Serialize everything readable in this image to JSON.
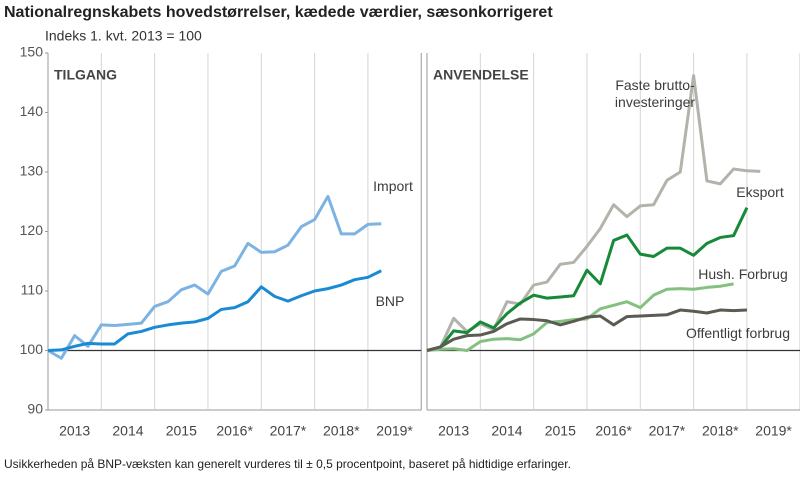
{
  "title": "Nationalregnskabets hovedstørrelser, kædede værdier, sæsonkorrigeret",
  "subtitle": "Indeks 1. kvt. 2013 = 100",
  "footnote": "Usikkerheden på BNP-væksten kan generelt vurderes til ± 0,5 procentpoint, baseret på hidtidige erfaringer.",
  "chart_data": [
    {
      "type": "line",
      "title": "TILGANG",
      "categories": [
        null,
        null,
        "2013",
        null,
        null,
        null,
        "2014",
        null,
        null,
        null,
        "2015",
        null,
        null,
        null,
        "2016*",
        null,
        null,
        null,
        "2017*",
        null,
        null,
        null,
        "2018*",
        null,
        null,
        null,
        "2019*",
        null
      ],
      "series": [
        {
          "name": "Import",
          "color": "#7db3e3",
          "values": [
            100,
            98.7,
            102.5,
            100.7,
            104.3,
            104.2,
            104.4,
            104.6,
            107.4,
            108.2,
            110.2,
            111.0,
            109.5,
            113.3,
            114.2,
            118.0,
            116.5,
            116.6,
            117.7,
            120.8,
            122.0,
            125.9,
            119.6,
            119.6,
            121.2,
            121.3,
            null,
            null
          ]
        },
        {
          "name": "BNP",
          "color": "#1a8ad4",
          "values": [
            100,
            100.1,
            100.7,
            101.2,
            101.1,
            101.1,
            102.8,
            103.2,
            103.9,
            104.3,
            104.6,
            104.8,
            105.4,
            106.9,
            107.2,
            108.2,
            110.7,
            109.1,
            108.3,
            109.2,
            110.0,
            110.4,
            111.0,
            111.9,
            112.3,
            113.4,
            null,
            null
          ]
        }
      ],
      "ylim": [
        90,
        150
      ],
      "yticks": [
        90,
        100,
        110,
        120,
        130,
        140,
        150
      ],
      "hline": 100,
      "grid": true
    },
    {
      "type": "line",
      "title": "ANVENDELSE",
      "categories": [
        null,
        null,
        "2013",
        null,
        null,
        null,
        "2014",
        null,
        null,
        null,
        "2015",
        null,
        null,
        null,
        "2016*",
        null,
        null,
        null,
        "2017*",
        null,
        null,
        null,
        "2018*",
        null,
        null,
        null,
        "2019*",
        null
      ],
      "series": [
        {
          "name": "Faste brutto-investeringer",
          "color": "#b3b3ab",
          "values": [
            100,
            100.5,
            105.4,
            103.2,
            104.5,
            103.5,
            108.2,
            107.8,
            111.0,
            111.5,
            114.5,
            114.8,
            117.5,
            120.5,
            124.5,
            122.5,
            124.3,
            124.5,
            128.6,
            130.0,
            146.2,
            128.5,
            128.0,
            130.5,
            130.2,
            130.1,
            null,
            null
          ]
        },
        {
          "name": "Eksport",
          "color": "#178a3a",
          "values": [
            100,
            100.5,
            103.3,
            103.0,
            104.8,
            103.8,
            106.2,
            108.0,
            109.3,
            108.8,
            109.0,
            109.2,
            113.5,
            111.2,
            118.5,
            119.4,
            116.2,
            115.8,
            117.2,
            117.2,
            116.0,
            118.0,
            119.0,
            119.3,
            124.0,
            null,
            null,
            null
          ]
        },
        {
          "name": "Hush. Forbrug",
          "color": "#84c07f",
          "values": [
            100,
            100.2,
            100.3,
            100.0,
            101.5,
            101.9,
            102.0,
            101.8,
            102.8,
            104.7,
            104.9,
            105.2,
            105.3,
            107.0,
            107.6,
            108.2,
            107.2,
            109.3,
            110.3,
            110.4,
            110.3,
            110.6,
            110.8,
            111.2,
            null,
            null,
            null,
            null
          ]
        },
        {
          "name": "Offentligt forbrug",
          "color": "#5b5b53",
          "values": [
            100,
            100.6,
            101.9,
            102.5,
            102.6,
            103.2,
            104.5,
            105.3,
            105.2,
            105.0,
            104.3,
            104.9,
            105.6,
            105.8,
            104.3,
            105.7,
            105.8,
            105.9,
            106.0,
            106.8,
            106.6,
            106.3,
            106.8,
            106.7,
            106.8,
            null,
            null,
            null
          ]
        }
      ],
      "ylim": [
        90,
        150
      ],
      "hline": 100,
      "grid": true
    }
  ]
}
